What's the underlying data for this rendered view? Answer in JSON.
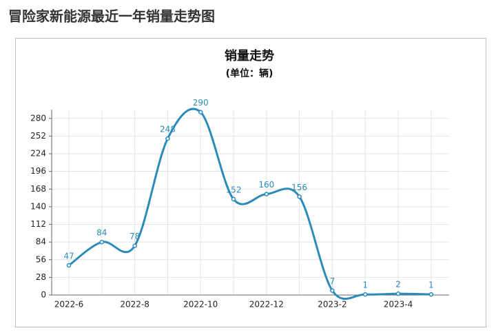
{
  "header": {
    "title": "冒险家新能源最近一年销量走势图"
  },
  "chart_data": {
    "type": "line",
    "title": "销量走势",
    "subtitle": "(单位：辆)",
    "categories": [
      "2022-6",
      null,
      "2022-8",
      null,
      "2022-10",
      null,
      "2022-12",
      null,
      "2023-2",
      null,
      "2023-4",
      null
    ],
    "series": [
      {
        "name": "销量",
        "color": "#2a8bb9",
        "values": [
          47,
          84,
          78,
          248,
          290,
          152,
          160,
          156,
          7,
          1,
          2,
          1
        ]
      }
    ],
    "ylim": [
      0,
      294
    ],
    "yticks": [
      0,
      28,
      56,
      84,
      112,
      140,
      168,
      196,
      224,
      252,
      280
    ],
    "grid": true,
    "smooth": true
  }
}
